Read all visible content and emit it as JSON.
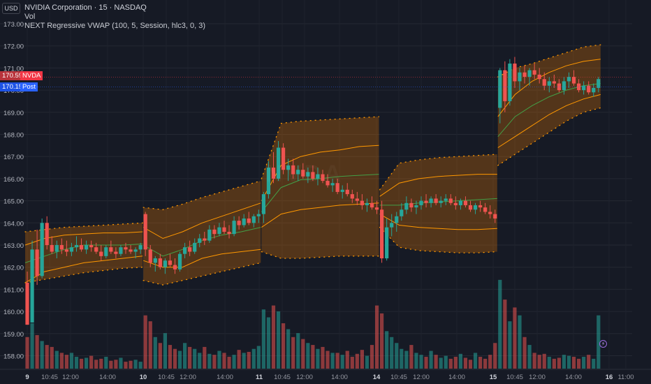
{
  "header": {
    "currency_label": "USD",
    "symbol_line": "NVIDIA Corporation · 15 · NASDAQ",
    "volume_label": "Vol",
    "indicator_line": "NEXT Regressive VWAP (100, 5, Session, hlc3, 0, 3)"
  },
  "price_tags": {
    "last_price": "170.59",
    "last_symbol": "NVDA",
    "post_price": "170.15",
    "post_label": "Post"
  },
  "chart_data": {
    "type": "candlestick",
    "y_ticks": [
      "173.00",
      "172.00",
      "171.00",
      "170.00",
      "169.00",
      "168.00",
      "167.00",
      "166.00",
      "165.00",
      "164.00",
      "163.00",
      "162.00",
      "161.00",
      "160.00",
      "159.00",
      "158.00"
    ],
    "x_ticks": [
      "9",
      "10:45",
      "12:00",
      "14:00",
      "10",
      "10:45",
      "12:00",
      "14:00",
      "11",
      "10:45",
      "12:00",
      "14:00",
      "14",
      "10:45",
      "12:00",
      "14:00",
      "15",
      "10:45",
      "12:00",
      "14:00",
      "16",
      "11:00"
    ],
    "sessions": [
      {
        "day": "9",
        "vwap": [
          162.2,
          162.5,
          162.8,
          163.0,
          163.0,
          163.0,
          163.05
        ],
        "upper": [
          163.0,
          163.3,
          163.45,
          163.5,
          163.55,
          163.55,
          163.6
        ],
        "lower": [
          161.3,
          161.8,
          162.0,
          162.2,
          162.3,
          162.4,
          162.5
        ],
        "band_top": [
          163.6,
          163.7,
          163.8,
          163.85,
          163.9,
          163.95,
          164.0
        ],
        "band_bottom": [
          161.3,
          161.45,
          161.6,
          161.75,
          161.85,
          161.95,
          162.0
        ]
      },
      {
        "day": "10",
        "vwap": [
          163.0,
          162.5,
          162.8,
          163.2,
          163.45,
          163.6,
          163.8
        ],
        "upper": [
          163.8,
          163.3,
          163.6,
          164.0,
          164.3,
          164.6,
          164.9
        ],
        "lower": [
          162.3,
          162.0,
          162.0,
          162.4,
          162.6,
          162.7,
          162.8
        ],
        "band_top": [
          164.7,
          164.6,
          164.85,
          165.15,
          165.4,
          165.65,
          165.9
        ],
        "band_bottom": [
          161.4,
          161.2,
          161.4,
          161.6,
          161.8,
          162.0,
          162.2
        ]
      },
      {
        "day": "11",
        "vwap": [
          164.5,
          165.6,
          165.95,
          166.0,
          166.1,
          166.15,
          166.2
        ],
        "upper": [
          165.0,
          166.6,
          167.0,
          167.2,
          167.3,
          167.45,
          167.5
        ],
        "lower": [
          163.8,
          164.4,
          164.6,
          164.7,
          164.8,
          164.85,
          164.9
        ],
        "band_top": [
          166.0,
          168.5,
          168.6,
          168.65,
          168.7,
          168.75,
          168.8
        ],
        "band_bottom": [
          162.7,
          162.4,
          162.4,
          162.45,
          162.5,
          162.5,
          162.5
        ]
      },
      {
        "day": "14",
        "vwap": [
          164.8,
          164.8,
          164.9,
          164.95,
          165.0,
          165.05,
          165.1
        ],
        "upper": [
          165.2,
          165.8,
          166.0,
          166.1,
          166.15,
          166.2,
          166.2
        ],
        "lower": [
          164.4,
          163.9,
          163.8,
          163.75,
          163.7,
          163.7,
          163.75
        ],
        "band_top": [
          165.5,
          166.7,
          166.85,
          166.95,
          167.0,
          167.05,
          167.1
        ],
        "band_bottom": [
          163.8,
          162.9,
          162.75,
          162.7,
          162.65,
          162.65,
          162.7
        ]
      },
      {
        "day": "15",
        "vwap": [
          167.9,
          168.8,
          169.3,
          169.7,
          170.0,
          170.2,
          170.3
        ],
        "upper": [
          168.8,
          169.8,
          170.4,
          170.8,
          171.1,
          171.3,
          171.4
        ],
        "lower": [
          167.4,
          167.9,
          168.4,
          168.9,
          169.3,
          169.6,
          169.8
        ],
        "band_top": [
          170.6,
          171.0,
          171.2,
          171.45,
          171.7,
          171.95,
          172.05
        ],
        "band_bottom": [
          166.6,
          167.1,
          167.6,
          168.1,
          168.6,
          169.0,
          169.2
        ]
      }
    ],
    "candles": [
      [
        0,
        161.3,
        161.8,
        159.4,
        159.4
      ],
      [
        1,
        159.5,
        163.2,
        159.5,
        162.8
      ],
      [
        2,
        162.8,
        163.7,
        161.2,
        161.6
      ],
      [
        3,
        161.6,
        164.2,
        161.5,
        164.0
      ],
      [
        4,
        164.0,
        164.3,
        162.8,
        163.0
      ],
      [
        5,
        163.0,
        163.4,
        162.6,
        162.7
      ],
      [
        6,
        162.7,
        163.2,
        162.4,
        163.0
      ],
      [
        7,
        163.0,
        163.3,
        162.6,
        162.8
      ],
      [
        8,
        162.8,
        163.2,
        162.5,
        162.7
      ],
      [
        9,
        162.7,
        163.1,
        162.5,
        162.9
      ],
      [
        10,
        162.9,
        163.4,
        162.7,
        163.0
      ],
      [
        11,
        163.0,
        163.3,
        162.7,
        162.8
      ],
      [
        12,
        162.8,
        163.2,
        162.6,
        163.0
      ],
      [
        13,
        163.0,
        163.2,
        162.7,
        162.9
      ],
      [
        14,
        162.9,
        163.1,
        162.6,
        162.7
      ],
      [
        15,
        162.7,
        163.0,
        162.3,
        162.5
      ],
      [
        16,
        162.5,
        163.0,
        162.4,
        162.9
      ],
      [
        17,
        162.9,
        163.2,
        162.6,
        162.7
      ],
      [
        18,
        162.7,
        162.9,
        162.4,
        162.6
      ],
      [
        19,
        162.6,
        163.0,
        162.5,
        162.9
      ],
      [
        20,
        162.9,
        163.1,
        162.6,
        162.8
      ],
      [
        21,
        162.8,
        163.0,
        162.6,
        162.7
      ],
      [
        22,
        162.7,
        162.9,
        162.4,
        162.8
      ],
      [
        23,
        162.8,
        163.1,
        162.6,
        163.0
      ],
      [
        24,
        164.4,
        164.5,
        162.5,
        162.8
      ],
      [
        25,
        162.8,
        163.0,
        162.0,
        162.2
      ],
      [
        26,
        162.2,
        162.5,
        161.8,
        162.4
      ],
      [
        27,
        162.4,
        162.6,
        161.9,
        162.0
      ],
      [
        28,
        162.0,
        162.4,
        161.7,
        162.3
      ],
      [
        29,
        162.3,
        162.6,
        162.0,
        162.1
      ],
      [
        30,
        162.1,
        162.4,
        161.7,
        161.9
      ],
      [
        31,
        161.9,
        162.7,
        161.8,
        162.6
      ],
      [
        32,
        162.6,
        163.1,
        162.4,
        162.9
      ],
      [
        33,
        162.9,
        163.2,
        162.5,
        162.7
      ],
      [
        34,
        162.7,
        163.3,
        162.6,
        163.1
      ],
      [
        35,
        163.1,
        163.5,
        162.9,
        163.3
      ],
      [
        36,
        163.3,
        163.6,
        163.0,
        163.2
      ],
      [
        37,
        163.2,
        163.9,
        163.1,
        163.7
      ],
      [
        38,
        163.7,
        163.9,
        163.3,
        163.5
      ],
      [
        39,
        163.5,
        164.0,
        163.4,
        163.8
      ],
      [
        40,
        163.8,
        164.1,
        163.5,
        163.6
      ],
      [
        41,
        163.6,
        163.9,
        163.3,
        163.5
      ],
      [
        42,
        163.5,
        164.3,
        163.4,
        164.1
      ],
      [
        43,
        164.1,
        164.3,
        163.7,
        163.9
      ],
      [
        44,
        163.9,
        164.4,
        163.8,
        164.2
      ],
      [
        45,
        164.2,
        164.5,
        163.9,
        164.0
      ],
      [
        46,
        164.0,
        164.4,
        163.8,
        164.3
      ],
      [
        47,
        164.3,
        164.6,
        164.0,
        164.4
      ],
      [
        48,
        164.4,
        165.4,
        164.0,
        165.3
      ],
      [
        49,
        165.3,
        166.8,
        165.1,
        166.5
      ],
      [
        50,
        166.5,
        167.2,
        165.8,
        166.0
      ],
      [
        51,
        166.0,
        167.7,
        165.9,
        167.4
      ],
      [
        52,
        167.4,
        167.6,
        166.2,
        166.4
      ],
      [
        53,
        166.4,
        166.9,
        165.9,
        166.6
      ],
      [
        54,
        166.6,
        166.9,
        166.0,
        166.2
      ],
      [
        55,
        166.2,
        166.6,
        165.9,
        166.4
      ],
      [
        56,
        166.4,
        166.7,
        166.0,
        166.1
      ],
      [
        57,
        166.1,
        166.5,
        165.8,
        166.3
      ],
      [
        58,
        166.3,
        166.6,
        165.9,
        166.0
      ],
      [
        59,
        166.0,
        166.5,
        165.7,
        166.2
      ],
      [
        60,
        166.2,
        166.4,
        165.8,
        165.9
      ],
      [
        61,
        165.9,
        166.2,
        165.6,
        165.7
      ],
      [
        62,
        165.7,
        166.0,
        165.4,
        165.8
      ],
      [
        63,
        165.8,
        166.0,
        165.3,
        165.4
      ],
      [
        64,
        165.4,
        165.7,
        165.1,
        165.5
      ],
      [
        65,
        165.5,
        165.8,
        165.2,
        165.3
      ],
      [
        66,
        165.3,
        165.5,
        164.9,
        165.1
      ],
      [
        67,
        165.1,
        165.4,
        164.8,
        165.0
      ],
      [
        68,
        165.0,
        165.3,
        164.6,
        164.8
      ],
      [
        69,
        164.8,
        165.1,
        164.5,
        164.9
      ],
      [
        70,
        164.9,
        165.2,
        164.6,
        164.7
      ],
      [
        71,
        164.7,
        165.0,
        164.4,
        164.6
      ],
      [
        72,
        164.6,
        165.0,
        162.2,
        162.4
      ],
      [
        73,
        162.4,
        164.2,
        162.3,
        163.8
      ],
      [
        74,
        163.8,
        164.4,
        163.4,
        164.0
      ],
      [
        75,
        164.0,
        164.5,
        163.6,
        164.3
      ],
      [
        76,
        164.3,
        164.9,
        164.1,
        164.6
      ],
      [
        77,
        164.6,
        165.2,
        164.4,
        164.9
      ],
      [
        78,
        164.9,
        165.1,
        164.5,
        164.7
      ],
      [
        79,
        164.7,
        165.0,
        164.4,
        164.8
      ],
      [
        80,
        164.8,
        165.2,
        164.6,
        165.0
      ],
      [
        81,
        165.0,
        165.3,
        164.7,
        164.9
      ],
      [
        82,
        164.9,
        165.2,
        164.7,
        165.1
      ],
      [
        83,
        165.1,
        165.3,
        164.8,
        164.9
      ],
      [
        84,
        164.9,
        165.2,
        164.7,
        165.0
      ],
      [
        85,
        165.0,
        165.3,
        164.8,
        165.1
      ],
      [
        86,
        165.1,
        165.3,
        164.8,
        164.9
      ],
      [
        87,
        164.9,
        165.2,
        164.6,
        164.8
      ],
      [
        88,
        164.8,
        165.1,
        164.6,
        165.0
      ],
      [
        89,
        165.0,
        165.2,
        164.7,
        164.8
      ],
      [
        90,
        164.8,
        165.0,
        164.5,
        164.6
      ],
      [
        91,
        164.6,
        164.9,
        164.4,
        164.8
      ],
      [
        92,
        164.8,
        165.0,
        164.5,
        164.7
      ],
      [
        93,
        164.7,
        164.9,
        164.4,
        164.5
      ],
      [
        94,
        164.5,
        164.8,
        164.2,
        164.4
      ],
      [
        95,
        164.4,
        164.6,
        164.0,
        164.2
      ],
      [
        96,
        169.2,
        171.0,
        168.5,
        170.9
      ],
      [
        97,
        170.9,
        171.3,
        169.0,
        169.5
      ],
      [
        98,
        169.5,
        171.4,
        169.3,
        171.2
      ],
      [
        99,
        171.2,
        171.5,
        170.1,
        170.4
      ],
      [
        100,
        170.4,
        171.0,
        170.0,
        170.8
      ],
      [
        101,
        170.8,
        171.1,
        170.3,
        170.6
      ],
      [
        102,
        170.6,
        171.0,
        170.2,
        170.9
      ],
      [
        103,
        170.9,
        171.2,
        170.5,
        170.7
      ],
      [
        104,
        170.7,
        171.0,
        170.3,
        170.5
      ],
      [
        105,
        170.5,
        170.8,
        170.0,
        170.2
      ],
      [
        106,
        170.2,
        170.6,
        169.9,
        170.4
      ],
      [
        107,
        170.4,
        170.7,
        170.1,
        170.3
      ],
      [
        108,
        170.3,
        170.5,
        169.9,
        170.0
      ],
      [
        109,
        170.0,
        170.6,
        169.8,
        170.4
      ],
      [
        110,
        170.4,
        170.8,
        170.1,
        170.6
      ],
      [
        111,
        170.6,
        170.9,
        170.2,
        170.3
      ],
      [
        112,
        170.3,
        170.5,
        169.9,
        170.0
      ],
      [
        113,
        170.0,
        170.4,
        169.8,
        170.2
      ],
      [
        114,
        170.2,
        170.4,
        169.8,
        169.9
      ],
      [
        115,
        169.9,
        170.3,
        169.7,
        170.1
      ],
      [
        116,
        170.1,
        170.6,
        169.9,
        170.5
      ]
    ],
    "volumes": [
      3.2,
      4.6,
      3.4,
      2.8,
      2.4,
      2.2,
      1.8,
      1.6,
      1.4,
      1.6,
      1.2,
      1.0,
      1.1,
      1.3,
      0.9,
      1.0,
      1.2,
      0.8,
      0.9,
      1.1,
      0.7,
      0.8,
      0.9,
      0.7,
      5.4,
      4.8,
      3.2,
      2.6,
      3.6,
      2.4,
      2.0,
      1.8,
      2.6,
      2.2,
      2.0,
      1.6,
      2.2,
      1.5,
      1.4,
      1.8,
      1.6,
      1.2,
      1.4,
      1.9,
      1.6,
      1.7,
      2.0,
      2.3,
      6.0,
      5.2,
      6.4,
      5.8,
      4.6,
      4.0,
      3.2,
      3.6,
      3.0,
      2.6,
      2.4,
      2.0,
      2.2,
      1.8,
      1.6,
      1.6,
      1.4,
      1.8,
      1.2,
      1.5,
      1.9,
      1.3,
      2.4,
      6.4,
      5.6,
      3.8,
      3.2,
      2.6,
      2.0,
      1.8,
      2.4,
      1.6,
      1.4,
      1.2,
      1.8,
      1.4,
      1.1,
      1.3,
      1.0,
      1.2,
      1.5,
      1.1,
      0.9,
      1.6,
      1.2,
      1.0,
      1.4,
      2.6,
      9.0,
      7.0,
      4.8,
      6.2,
      5.4,
      3.2,
      2.4,
      1.6,
      1.4,
      1.5,
      1.2,
      1.0,
      1.1,
      1.4,
      1.3,
      1.2,
      1.0,
      1.2,
      1.4,
      1.0,
      5.4
    ]
  }
}
